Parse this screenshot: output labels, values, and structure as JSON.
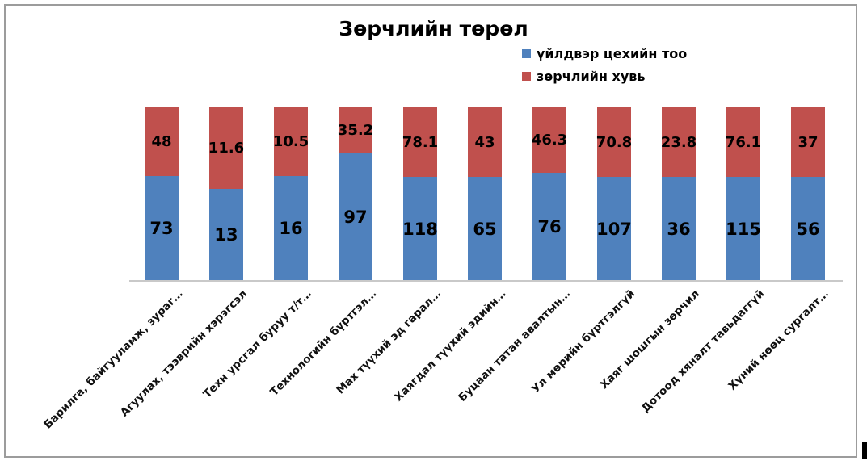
{
  "chart_data": {
    "type": "bar",
    "subtype": "percent-stacked-column",
    "title": "Зөрчлийн төрөл",
    "categories": [
      "Барилга, байгууламж, зураг…",
      "Агуулах, тээврийн хэрэгсэл",
      "Техн урсгал буруу т/т…",
      "Технологийн бүртгэл…",
      "Мах түүхий эд  гарал…",
      "Хаягдал түүхий  эдийн…",
      "Буцаан татан авалтын…",
      "Ул мөрийн бүртгэлгүй",
      "Хаяг шошгын зөрчил",
      "Дотоод хяналт  тавьдаггүй",
      "Хүний нөөц сургалт…"
    ],
    "series": [
      {
        "name": "үйлдвэр цехийн тоо",
        "color": "#4F81BD",
        "values": [
          73,
          13,
          16,
          97,
          118,
          65,
          76,
          107,
          36,
          115,
          56
        ]
      },
      {
        "name": "зөрчлийн хувь",
        "color": "#C0504D",
        "values": [
          48,
          11.6,
          10.5,
          35.2,
          78.1,
          43,
          46.3,
          70.8,
          23.8,
          76.1,
          37
        ]
      }
    ],
    "legend_position": "top-right",
    "grid": false,
    "data_labels": "inside-center",
    "axis_line_color": "#C9C9C9",
    "label_color": "#000000"
  }
}
